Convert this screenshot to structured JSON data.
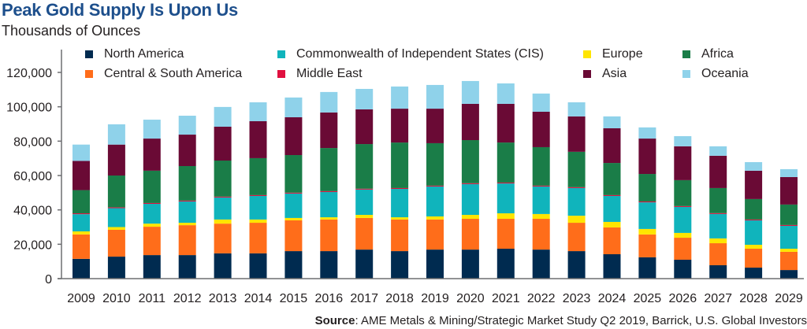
{
  "title": "Peak Gold Supply Is Upon Us",
  "subtitle": "Thousands of Ounces",
  "source_label": "Source",
  "source_text": ": AME Metals & Mining/Strategic Market Study Q2 2019, Barrick, U.S. Global Investors",
  "chart_data": {
    "type": "bar",
    "stacked": true,
    "title": "Peak Gold Supply Is Upon Us",
    "subtitle": "Thousands of Ounces",
    "xlabel": "",
    "ylabel": "Thousands of Ounces",
    "ylim": [
      0,
      120000
    ],
    "yticks": [
      0,
      20000,
      40000,
      60000,
      80000,
      100000,
      120000
    ],
    "ytick_labels": [
      "0",
      "20,000",
      "40,000",
      "60,000",
      "80,000",
      "100,000",
      "120,000"
    ],
    "grid": false,
    "legend_position": "top",
    "categories": [
      "2009",
      "2010",
      "2011",
      "2012",
      "2013",
      "2014",
      "2015",
      "2016",
      "2017",
      "2018",
      "2019",
      "2020",
      "2021",
      "2022",
      "2023",
      "2024",
      "2025",
      "2026",
      "2027",
      "2028",
      "2029"
    ],
    "series": [
      {
        "name": "North America",
        "color": "#002b50",
        "values": [
          11500,
          12800,
          13700,
          13700,
          14700,
          14700,
          16000,
          16000,
          16900,
          16000,
          16900,
          16900,
          17400,
          16900,
          16000,
          14200,
          12400,
          11000,
          7800,
          6400,
          5000
        ]
      },
      {
        "name": "Central & South America",
        "color": "#ff6d1a",
        "values": [
          14200,
          15600,
          16500,
          17400,
          17300,
          17800,
          17900,
          18400,
          18400,
          18400,
          17500,
          17900,
          17400,
          17900,
          16500,
          15600,
          13300,
          12800,
          12800,
          11000,
          10600
        ]
      },
      {
        "name": "Europe",
        "color": "#ffe500",
        "values": [
          1800,
          1600,
          1800,
          1400,
          2400,
          1900,
          1400,
          1300,
          1800,
          1300,
          1800,
          2300,
          3200,
          2800,
          4100,
          3200,
          3200,
          2800,
          2800,
          2300,
          1800
        ]
      },
      {
        "name": "Commonwealth of Independent States (CIS)",
        "color": "#10b4bc",
        "values": [
          10000,
          11000,
          11500,
          12400,
          12800,
          13700,
          14200,
          14700,
          14700,
          16500,
          17400,
          17900,
          17400,
          16000,
          16100,
          15100,
          15500,
          15100,
          14200,
          14200,
          13300
        ]
      },
      {
        "name": "Middle East",
        "color": "#e0103f",
        "values": [
          500,
          500,
          500,
          500,
          500,
          500,
          500,
          500,
          500,
          500,
          500,
          500,
          500,
          500,
          500,
          500,
          500,
          500,
          500,
          500,
          500
        ]
      },
      {
        "name": "Africa",
        "color": "#1a7d48",
        "values": [
          13500,
          18500,
          18800,
          20100,
          21000,
          21500,
          21900,
          25100,
          26000,
          26500,
          24700,
          25100,
          23300,
          22400,
          20600,
          18700,
          16000,
          15100,
          14600,
          11900,
          11900
        ]
      },
      {
        "name": "Asia",
        "color": "#6a0a35",
        "values": [
          17000,
          18000,
          18700,
          18300,
          19700,
          21500,
          22000,
          20700,
          20200,
          19700,
          20100,
          21100,
          22500,
          20600,
          20600,
          20200,
          20600,
          19700,
          18800,
          16500,
          16000
        ]
      },
      {
        "name": "Oceania",
        "color": "#8fd2ea",
        "values": [
          9500,
          11800,
          11000,
          11000,
          11500,
          11000,
          11500,
          11900,
          11900,
          12900,
          13800,
          13300,
          11900,
          10600,
          8200,
          6900,
          6500,
          5900,
          5500,
          5000,
          4600
        ]
      }
    ]
  }
}
